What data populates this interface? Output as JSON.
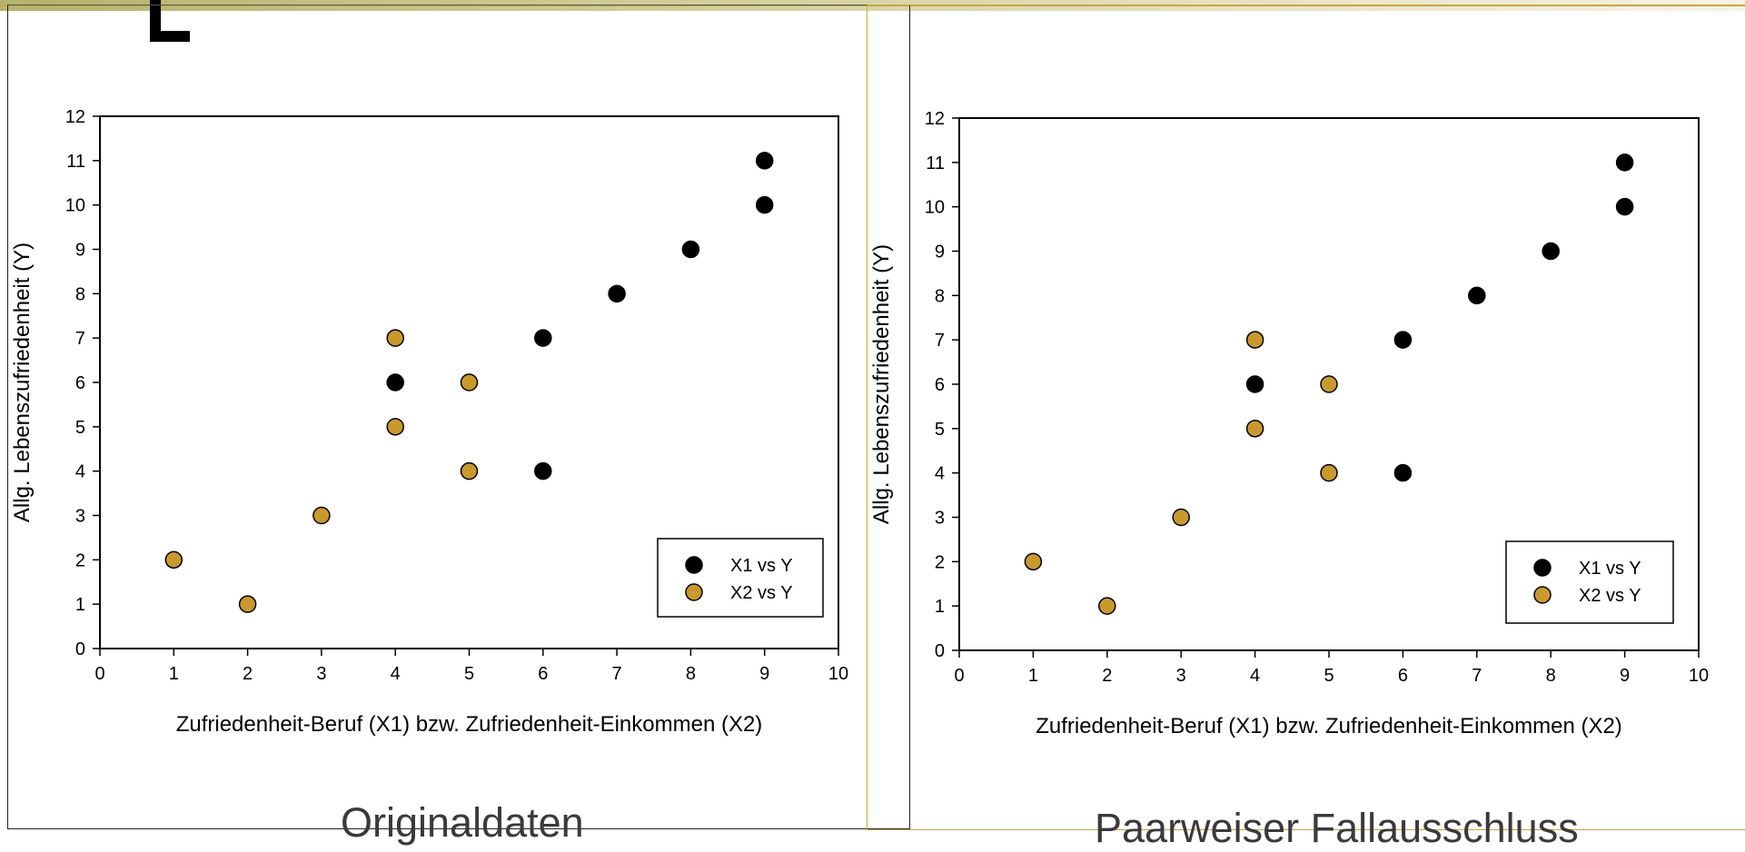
{
  "colors": {
    "x1_marker": "#000000",
    "x2_marker": "#c9992e",
    "accent": "#c9a640"
  },
  "captions": {
    "left": "Originaldaten",
    "right": "Paarweiser Fallausschluss"
  },
  "chart_data": [
    {
      "type": "scatter",
      "title": "",
      "xlabel": "Zufriedenheit-Beruf (X1) bzw. Zufriedenheit-Einkommen (X2)",
      "ylabel": "Allg. Lebenszufriedenheit (Y)",
      "xlim": [
        0,
        10
      ],
      "ylim": [
        0,
        12
      ],
      "xticks": [
        "0",
        "1",
        "2",
        "3",
        "4",
        "5",
        "6",
        "7",
        "8",
        "9",
        "10"
      ],
      "yticks": [
        "0",
        "1",
        "2",
        "3",
        "4",
        "5",
        "6",
        "7",
        "8",
        "9",
        "10",
        "11",
        "12"
      ],
      "grid": false,
      "legend": "bottom-right",
      "series": [
        {
          "name": "X1 vs Y",
          "color": "#000000",
          "points": [
            [
              4,
              6
            ],
            [
              6,
              7
            ],
            [
              6,
              4
            ],
            [
              7,
              8
            ],
            [
              8,
              9
            ],
            [
              9,
              10
            ],
            [
              9,
              11
            ]
          ]
        },
        {
          "name": "X2 vs Y",
          "color": "#c9992e",
          "points": [
            [
              1,
              2
            ],
            [
              2,
              1
            ],
            [
              3,
              3
            ],
            [
              4,
              5
            ],
            [
              4,
              7
            ],
            [
              5,
              4
            ],
            [
              5,
              6
            ]
          ]
        }
      ]
    },
    {
      "type": "scatter",
      "title": "",
      "xlabel": "Zufriedenheit-Beruf (X1) bzw. Zufriedenheit-Einkommen (X2)",
      "ylabel": "Allg. Lebenszufriedenheit (Y)",
      "xlim": [
        0,
        10
      ],
      "ylim": [
        0,
        12
      ],
      "xticks": [
        "0",
        "1",
        "2",
        "3",
        "4",
        "5",
        "6",
        "7",
        "8",
        "9",
        "10"
      ],
      "yticks": [
        "0",
        "1",
        "2",
        "3",
        "4",
        "5",
        "6",
        "7",
        "8",
        "9",
        "10",
        "11",
        "12"
      ],
      "grid": false,
      "legend": "bottom-right",
      "series": [
        {
          "name": "X1 vs Y",
          "color": "#000000",
          "points": [
            [
              4,
              6
            ],
            [
              6,
              7
            ],
            [
              6,
              4
            ],
            [
              7,
              8
            ],
            [
              8,
              9
            ],
            [
              9,
              10
            ],
            [
              9,
              11
            ]
          ]
        },
        {
          "name": "X2 vs Y",
          "color": "#c9992e",
          "points": [
            [
              1,
              2
            ],
            [
              2,
              1
            ],
            [
              3,
              3
            ],
            [
              4,
              5
            ],
            [
              4,
              7
            ],
            [
              5,
              4
            ],
            [
              5,
              6
            ]
          ]
        }
      ]
    }
  ]
}
